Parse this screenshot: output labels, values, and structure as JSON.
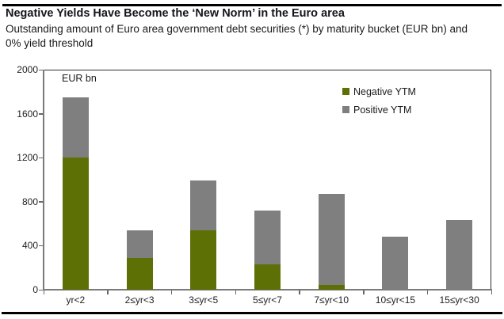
{
  "chart_data": {
    "type": "bar",
    "stacked": true,
    "title": "Negative Yields Have Become the ‘New Norm’ in the Euro area",
    "subtitle": "Outstanding amount of Euro area government debt securities (*) by maturity bucket (EUR bn) and 0% yield threshold",
    "unit_label": "EUR bn",
    "categories": [
      "yr<2",
      "2≤yr<3",
      "3≤yr<5",
      "5≤yr<7",
      "7≤yr<10",
      "10≤yr<15",
      "15≤yr<30"
    ],
    "series": [
      {
        "name": "Negative YTM",
        "color": "#5c7005",
        "values": [
          1200,
          290,
          540,
          230,
          40,
          0,
          0
        ]
      },
      {
        "name": "Positive YTM",
        "color": "#7f7f7f",
        "values": [
          550,
          250,
          450,
          490,
          830,
          480,
          630
        ]
      }
    ],
    "totals": [
      1750,
      540,
      990,
      720,
      870,
      480,
      630
    ],
    "ylim": [
      0,
      2000
    ],
    "yticks": [
      0,
      400,
      800,
      1200,
      1600,
      2000
    ],
    "grid": false,
    "legend_position": "top-right-inside"
  }
}
